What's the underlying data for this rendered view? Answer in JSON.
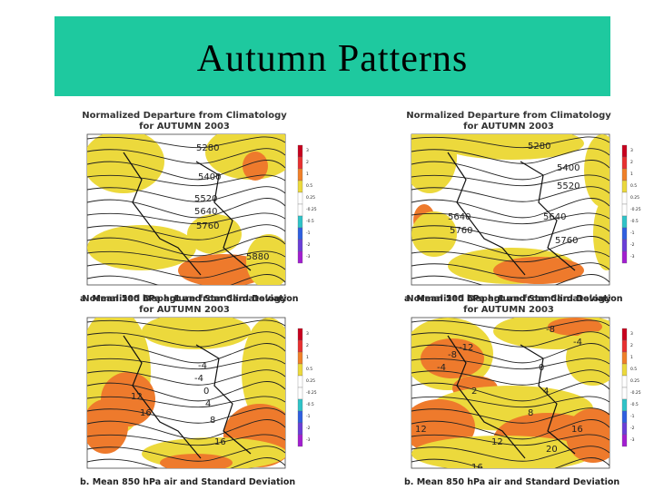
{
  "title": "Autumn Patterns",
  "colorbar_labels": [
    "3",
    "2",
    "1",
    "0.5",
    "0.25",
    "-0.25",
    "-0.5",
    "-1",
    "-2",
    "-3"
  ],
  "panels": [
    {
      "heading": [
        "Normalized Departure from Climatology",
        "for AUTUMN 2003"
      ],
      "caption": "a. Mean 500  hPa hgt and Standard Deviation",
      "contour_labels": [
        "5280",
        "5400",
        "5520",
        "5640",
        "5760",
        "5880"
      ]
    },
    {
      "heading": [
        "Normalized Departure from Climatology",
        "for AUTUMN 2003"
      ],
      "caption": "a. Mean 500  hPa hgt and Standard Deviation",
      "contour_labels": [
        "5280",
        "5400",
        "5520",
        "5640",
        "5760",
        "5640",
        "5760"
      ]
    },
    {
      "heading": [
        "Normalized Departure from Climatology",
        "for AUTUMN 2003"
      ],
      "caption": "b. Mean 850 hPa air and Standard Deviation",
      "contour_labels": [
        "-4",
        "-4",
        "0",
        "4",
        "8",
        "12",
        "16",
        "16"
      ]
    },
    {
      "heading": [
        "Normalized Departure from Climatology",
        "for AUTUMN 2003"
      ],
      "caption": "b. Mean 850 hPa air and Standard Deviation",
      "contour_labels": [
        "-8",
        "-4",
        "-12",
        "-8",
        "-4",
        "0",
        "2",
        "4",
        "8",
        "12",
        "12",
        "16",
        "20",
        "16"
      ]
    }
  ]
}
